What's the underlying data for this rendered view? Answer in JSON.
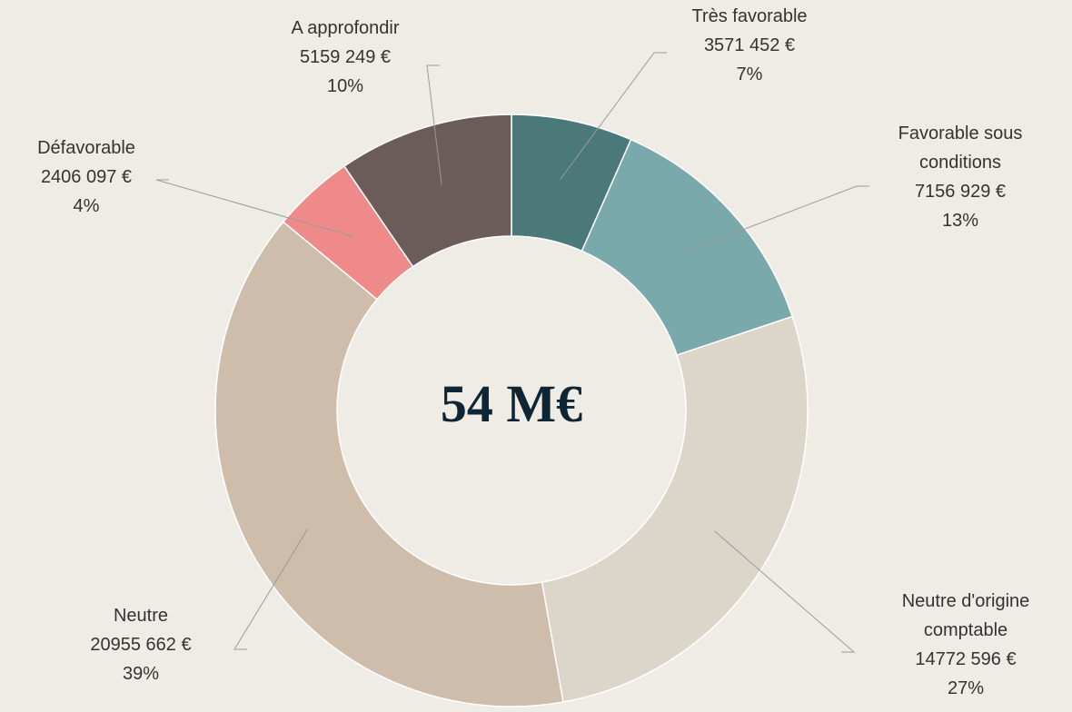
{
  "chart_data": {
    "type": "donut",
    "center_label": "54 M€",
    "categories": [
      "Très favorable",
      "Favorable sous conditions",
      "Neutre d'origine comptable",
      "Neutre",
      "Défavorable",
      "A approfondir"
    ],
    "values": [
      3571452,
      7156929,
      14772596,
      20955662,
      2406097,
      5159249
    ],
    "value_labels": [
      "3571 452 €",
      "7156 929 €",
      "14772 596 €",
      "20955 662 €",
      "2406 097 €",
      "5159 249 €"
    ],
    "percent_labels": [
      "7%",
      "13%",
      "27%",
      "39%",
      "4%",
      "10%"
    ],
    "colors": [
      "#4b7879",
      "#7aa9ab",
      "#dcd6ca",
      "#cdbdaa",
      "#ee8a89",
      "#6b5c5a"
    ]
  }
}
